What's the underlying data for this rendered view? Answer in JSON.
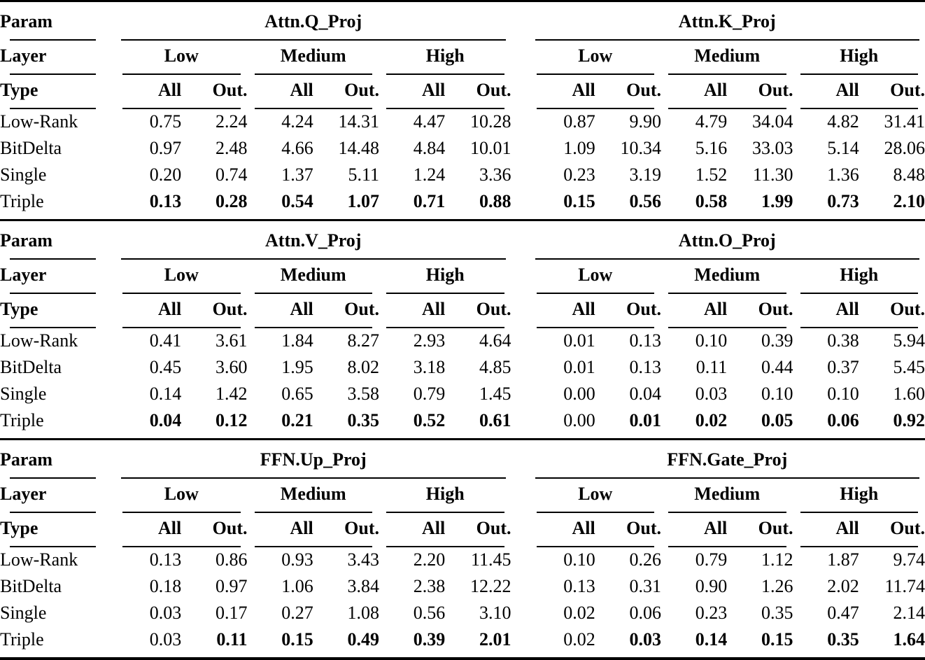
{
  "figure": {
    "header_labels": {
      "param": "Param",
      "layer": "Layer",
      "type": "Type"
    },
    "layer_levels": [
      "Low",
      "Medium",
      "High"
    ],
    "type_cols": [
      "All",
      "Out."
    ],
    "tables": [
      {
        "groups": [
          "Attn.Q_Proj",
          "Attn.K_Proj"
        ],
        "rows": [
          {
            "label": "Low-Rank",
            "values": [
              "0.75",
              "2.24",
              "4.24",
              "14.31",
              "4.47",
              "10.28",
              "0.87",
              "9.90",
              "4.79",
              "34.04",
              "4.82",
              "31.41"
            ],
            "bold": [
              0,
              0,
              0,
              0,
              0,
              0,
              0,
              0,
              0,
              0,
              0,
              0
            ]
          },
          {
            "label": "BitDelta",
            "values": [
              "0.97",
              "2.48",
              "4.66",
              "14.48",
              "4.84",
              "10.01",
              "1.09",
              "10.34",
              "5.16",
              "33.03",
              "5.14",
              "28.06"
            ],
            "bold": [
              0,
              0,
              0,
              0,
              0,
              0,
              0,
              0,
              0,
              0,
              0,
              0
            ]
          },
          {
            "label": "Single",
            "values": [
              "0.20",
              "0.74",
              "1.37",
              "5.11",
              "1.24",
              "3.36",
              "0.23",
              "3.19",
              "1.52",
              "11.30",
              "1.36",
              "8.48"
            ],
            "bold": [
              0,
              0,
              0,
              0,
              0,
              0,
              0,
              0,
              0,
              0,
              0,
              0
            ]
          },
          {
            "label": "Triple",
            "values": [
              "0.13",
              "0.28",
              "0.54",
              "1.07",
              "0.71",
              "0.88",
              "0.15",
              "0.56",
              "0.58",
              "1.99",
              "0.73",
              "2.10"
            ],
            "bold": [
              1,
              1,
              1,
              1,
              1,
              1,
              1,
              1,
              1,
              1,
              1,
              1
            ]
          }
        ]
      },
      {
        "groups": [
          "Attn.V_Proj",
          "Attn.O_Proj"
        ],
        "rows": [
          {
            "label": "Low-Rank",
            "values": [
              "0.41",
              "3.61",
              "1.84",
              "8.27",
              "2.93",
              "4.64",
              "0.01",
              "0.13",
              "0.10",
              "0.39",
              "0.38",
              "5.94"
            ],
            "bold": [
              0,
              0,
              0,
              0,
              0,
              0,
              0,
              0,
              0,
              0,
              0,
              0
            ]
          },
          {
            "label": "BitDelta",
            "values": [
              "0.45",
              "3.60",
              "1.95",
              "8.02",
              "3.18",
              "4.85",
              "0.01",
              "0.13",
              "0.11",
              "0.44",
              "0.37",
              "5.45"
            ],
            "bold": [
              0,
              0,
              0,
              0,
              0,
              0,
              0,
              0,
              0,
              0,
              0,
              0
            ]
          },
          {
            "label": "Single",
            "values": [
              "0.14",
              "1.42",
              "0.65",
              "3.58",
              "0.79",
              "1.45",
              "0.00",
              "0.04",
              "0.03",
              "0.10",
              "0.10",
              "1.60"
            ],
            "bold": [
              0,
              0,
              0,
              0,
              0,
              0,
              0,
              0,
              0,
              0,
              0,
              0
            ]
          },
          {
            "label": "Triple",
            "values": [
              "0.04",
              "0.12",
              "0.21",
              "0.35",
              "0.52",
              "0.61",
              "0.00",
              "0.01",
              "0.02",
              "0.05",
              "0.06",
              "0.92"
            ],
            "bold": [
              1,
              1,
              1,
              1,
              1,
              1,
              0,
              1,
              1,
              1,
              1,
              1
            ]
          }
        ]
      },
      {
        "groups": [
          "FFN.Up_Proj",
          "FFN.Gate_Proj"
        ],
        "rows": [
          {
            "label": "Low-Rank",
            "values": [
              "0.13",
              "0.86",
              "0.93",
              "3.43",
              "2.20",
              "11.45",
              "0.10",
              "0.26",
              "0.79",
              "1.12",
              "1.87",
              "9.74"
            ],
            "bold": [
              0,
              0,
              0,
              0,
              0,
              0,
              0,
              0,
              0,
              0,
              0,
              0
            ]
          },
          {
            "label": "BitDelta",
            "values": [
              "0.18",
              "0.97",
              "1.06",
              "3.84",
              "2.38",
              "12.22",
              "0.13",
              "0.31",
              "0.90",
              "1.26",
              "2.02",
              "11.74"
            ],
            "bold": [
              0,
              0,
              0,
              0,
              0,
              0,
              0,
              0,
              0,
              0,
              0,
              0
            ]
          },
          {
            "label": "Single",
            "values": [
              "0.03",
              "0.17",
              "0.27",
              "1.08",
              "0.56",
              "3.10",
              "0.02",
              "0.06",
              "0.23",
              "0.35",
              "0.47",
              "2.14"
            ],
            "bold": [
              0,
              0,
              0,
              0,
              0,
              0,
              0,
              0,
              0,
              0,
              0,
              0
            ]
          },
          {
            "label": "Triple",
            "values": [
              "0.03",
              "0.11",
              "0.15",
              "0.49",
              "0.39",
              "2.01",
              "0.02",
              "0.03",
              "0.14",
              "0.15",
              "0.35",
              "1.64"
            ],
            "bold": [
              0,
              1,
              1,
              1,
              1,
              1,
              0,
              1,
              1,
              1,
              1,
              1
            ]
          }
        ]
      }
    ]
  }
}
